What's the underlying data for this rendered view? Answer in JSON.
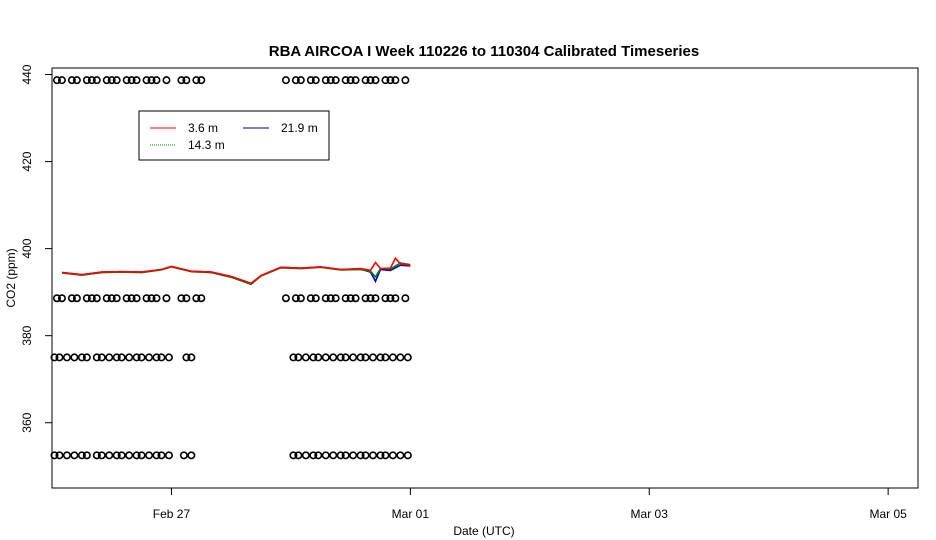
{
  "chart_data": {
    "type": "line",
    "title": "RBA AIRCOA I  Week 110226 to 110304  Calibrated Timeseries",
    "xlabel": "Date (UTC)",
    "ylabel": "CO2 (ppm)",
    "x_axis_kind": "time (days)",
    "xlim": [
      "2011-02-26 00:00",
      "2011-03-05 06:00"
    ],
    "ylim": [
      345,
      441.5
    ],
    "x_ticks": [
      {
        "x": "2011-02-27 00:00",
        "label": "Feb 27"
      },
      {
        "x": "2011-03-01 00:00",
        "label": "Mar 01"
      },
      {
        "x": "2011-03-03 00:00",
        "label": "Mar 03"
      },
      {
        "x": "2011-03-05 00:00",
        "label": "Mar 05"
      }
    ],
    "y_ticks": [
      360,
      380,
      400,
      420,
      440
    ],
    "grid": false,
    "legend_placement": "top-left",
    "legend": [
      {
        "label": "3.6 m",
        "color": "#ff0000"
      },
      {
        "label": "21.9 m",
        "color": "#00008b"
      },
      {
        "label": "14.3 m",
        "color": "#008000"
      }
    ],
    "series": [
      {
        "name": "21.9 m",
        "color": "#0000cc",
        "x": [
          "2011-02-26 02:00",
          "2011-02-26 06:00",
          "2011-02-26 10:00",
          "2011-02-26 14:00",
          "2011-02-26 18:00",
          "2011-02-26 22:00",
          "2011-02-27 00:00",
          "2011-02-27 04:00",
          "2011-02-27 08:00",
          "2011-02-27 12:00",
          "2011-02-27 16:00",
          "2011-02-27 18:00",
          "2011-02-27 22:00",
          "2011-02-28 02:00",
          "2011-02-28 06:00",
          "2011-02-28 10:00",
          "2011-02-28 14:00",
          "2011-02-28 16:00",
          "2011-02-28 17:00",
          "2011-02-28 18:00",
          "2011-02-28 20:00",
          "2011-02-28 22:00",
          "2011-03-01 00:00"
        ],
        "values": [
          394.5,
          394.0,
          394.6,
          394.7,
          394.6,
          395.2,
          395.9,
          394.8,
          394.6,
          393.6,
          392.0,
          393.8,
          395.7,
          395.5,
          395.8,
          395.2,
          395.3,
          394.6,
          392.5,
          395.2,
          395.0,
          396.2,
          396.0
        ]
      },
      {
        "name": "14.3 m",
        "color": "#008000",
        "x": [
          "2011-02-26 02:00",
          "2011-02-26 06:00",
          "2011-02-26 10:00",
          "2011-02-26 14:00",
          "2011-02-26 18:00",
          "2011-02-26 22:00",
          "2011-02-27 00:00",
          "2011-02-27 04:00",
          "2011-02-27 08:00",
          "2011-02-27 12:00",
          "2011-02-27 16:00",
          "2011-02-27 18:00",
          "2011-02-27 22:00",
          "2011-02-28 02:00",
          "2011-02-28 06:00",
          "2011-02-28 10:00",
          "2011-02-28 14:00",
          "2011-02-28 16:00",
          "2011-02-28 17:00",
          "2011-02-28 18:00",
          "2011-02-28 20:00",
          "2011-02-28 22:00",
          "2011-03-01 00:00"
        ],
        "values": [
          394.4,
          393.9,
          394.5,
          394.6,
          394.5,
          395.1,
          395.8,
          394.7,
          394.5,
          393.4,
          391.8,
          393.7,
          395.6,
          395.4,
          395.7,
          395.1,
          395.2,
          394.8,
          393.5,
          395.4,
          395.3,
          396.7,
          396.3
        ]
      },
      {
        "name": "3.6 m",
        "color": "#ff0000",
        "x": [
          "2011-02-26 02:00",
          "2011-02-26 06:00",
          "2011-02-26 10:00",
          "2011-02-26 14:00",
          "2011-02-26 18:00",
          "2011-02-26 22:00",
          "2011-02-27 00:00",
          "2011-02-27 04:00",
          "2011-02-27 08:00",
          "2011-02-27 12:00",
          "2011-02-27 16:00",
          "2011-02-27 18:00",
          "2011-02-27 22:00",
          "2011-02-28 02:00",
          "2011-02-28 06:00",
          "2011-02-28 10:00",
          "2011-02-28 14:00",
          "2011-02-28 16:00",
          "2011-02-28 17:00",
          "2011-02-28 18:00",
          "2011-02-28 20:00",
          "2011-02-28 21:00",
          "2011-02-28 22:00",
          "2011-03-01 00:00"
        ],
        "values": [
          394.5,
          394.0,
          394.6,
          394.7,
          394.6,
          395.2,
          395.9,
          394.8,
          394.6,
          393.6,
          392.0,
          393.8,
          395.7,
          395.5,
          395.8,
          395.2,
          395.4,
          395.0,
          396.8,
          395.4,
          395.5,
          397.8,
          396.5,
          396.2
        ]
      }
    ],
    "calibration_points": [
      {
        "level": 438.7,
        "x": [
          "2011-02-26 01:00",
          "2011-02-26 02:00",
          "2011-02-26 04:00",
          "2011-02-26 05:00",
          "2011-02-26 07:00",
          "2011-02-26 08:00",
          "2011-02-26 09:00",
          "2011-02-26 11:00",
          "2011-02-26 12:00",
          "2011-02-26 13:00",
          "2011-02-26 15:00",
          "2011-02-26 16:00",
          "2011-02-26 17:00",
          "2011-02-26 19:00",
          "2011-02-26 20:00",
          "2011-02-26 21:00",
          "2011-02-26 23:00",
          "2011-02-27 02:00",
          "2011-02-27 03:00",
          "2011-02-27 05:00",
          "2011-02-27 06:00",
          "2011-02-27 23:00",
          "2011-02-28 01:00",
          "2011-02-28 02:00",
          "2011-02-28 04:00",
          "2011-02-28 05:00",
          "2011-02-28 07:00",
          "2011-02-28 08:00",
          "2011-02-28 09:00",
          "2011-02-28 11:00",
          "2011-02-28 12:00",
          "2011-02-28 13:00",
          "2011-02-28 15:00",
          "2011-02-28 16:00",
          "2011-02-28 17:00",
          "2011-02-28 19:00",
          "2011-02-28 20:00",
          "2011-02-28 21:00",
          "2011-02-28 23:00"
        ]
      },
      {
        "level": 388.6,
        "x": [
          "2011-02-26 01:00",
          "2011-02-26 02:00",
          "2011-02-26 04:00",
          "2011-02-26 05:00",
          "2011-02-26 07:00",
          "2011-02-26 08:00",
          "2011-02-26 09:00",
          "2011-02-26 11:00",
          "2011-02-26 12:00",
          "2011-02-26 13:00",
          "2011-02-26 15:00",
          "2011-02-26 16:00",
          "2011-02-26 17:00",
          "2011-02-26 19:00",
          "2011-02-26 20:00",
          "2011-02-26 21:00",
          "2011-02-26 23:00",
          "2011-02-27 02:00",
          "2011-02-27 03:00",
          "2011-02-27 05:00",
          "2011-02-27 06:00",
          "2011-02-27 23:00",
          "2011-02-28 01:00",
          "2011-02-28 02:00",
          "2011-02-28 04:00",
          "2011-02-28 05:00",
          "2011-02-28 07:00",
          "2011-02-28 08:00",
          "2011-02-28 09:00",
          "2011-02-28 11:00",
          "2011-02-28 12:00",
          "2011-02-28 13:00",
          "2011-02-28 15:00",
          "2011-02-28 16:00",
          "2011-02-28 17:00",
          "2011-02-28 19:00",
          "2011-02-28 20:00",
          "2011-02-28 21:00",
          "2011-02-28 23:00"
        ]
      },
      {
        "level": 375.0,
        "x": [
          "2011-02-26 00:30",
          "2011-02-26 01:30",
          "2011-02-26 03:00",
          "2011-02-26 04:30",
          "2011-02-26 06:00",
          "2011-02-26 07:00",
          "2011-02-26 09:00",
          "2011-02-26 10:00",
          "2011-02-26 11:30",
          "2011-02-26 13:00",
          "2011-02-26 14:00",
          "2011-02-26 15:30",
          "2011-02-26 17:00",
          "2011-02-26 18:00",
          "2011-02-26 19:30",
          "2011-02-26 21:00",
          "2011-02-26 22:00",
          "2011-02-26 23:30",
          "2011-02-27 03:00",
          "2011-02-27 04:00",
          "2011-02-28 00:30",
          "2011-02-28 01:30",
          "2011-02-28 03:00",
          "2011-02-28 04:30",
          "2011-02-28 05:30",
          "2011-02-28 07:00",
          "2011-02-28 08:30",
          "2011-02-28 10:00",
          "2011-02-28 11:00",
          "2011-02-28 12:30",
          "2011-02-28 14:00",
          "2011-02-28 15:00",
          "2011-02-28 16:30",
          "2011-02-28 18:00",
          "2011-02-28 19:00",
          "2011-02-28 20:30",
          "2011-02-28 22:00",
          "2011-02-28 23:30"
        ]
      },
      {
        "level": 352.5,
        "x": [
          "2011-02-26 00:30",
          "2011-02-26 01:30",
          "2011-02-26 03:00",
          "2011-02-26 04:30",
          "2011-02-26 06:00",
          "2011-02-26 07:00",
          "2011-02-26 09:00",
          "2011-02-26 10:00",
          "2011-02-26 11:30",
          "2011-02-26 13:00",
          "2011-02-26 14:00",
          "2011-02-26 15:30",
          "2011-02-26 17:00",
          "2011-02-26 18:00",
          "2011-02-26 19:30",
          "2011-02-26 21:00",
          "2011-02-26 22:00",
          "2011-02-26 23:30",
          "2011-02-27 02:30",
          "2011-02-27 04:00",
          "2011-02-28 00:30",
          "2011-02-28 01:30",
          "2011-02-28 03:00",
          "2011-02-28 04:30",
          "2011-02-28 05:30",
          "2011-02-28 07:00",
          "2011-02-28 08:30",
          "2011-02-28 10:00",
          "2011-02-28 11:00",
          "2011-02-28 12:30",
          "2011-02-28 14:00",
          "2011-02-28 15:00",
          "2011-02-28 16:30",
          "2011-02-28 18:00",
          "2011-02-28 19:00",
          "2011-02-28 20:30",
          "2011-02-28 22:00",
          "2011-02-28 23:30"
        ]
      }
    ]
  }
}
